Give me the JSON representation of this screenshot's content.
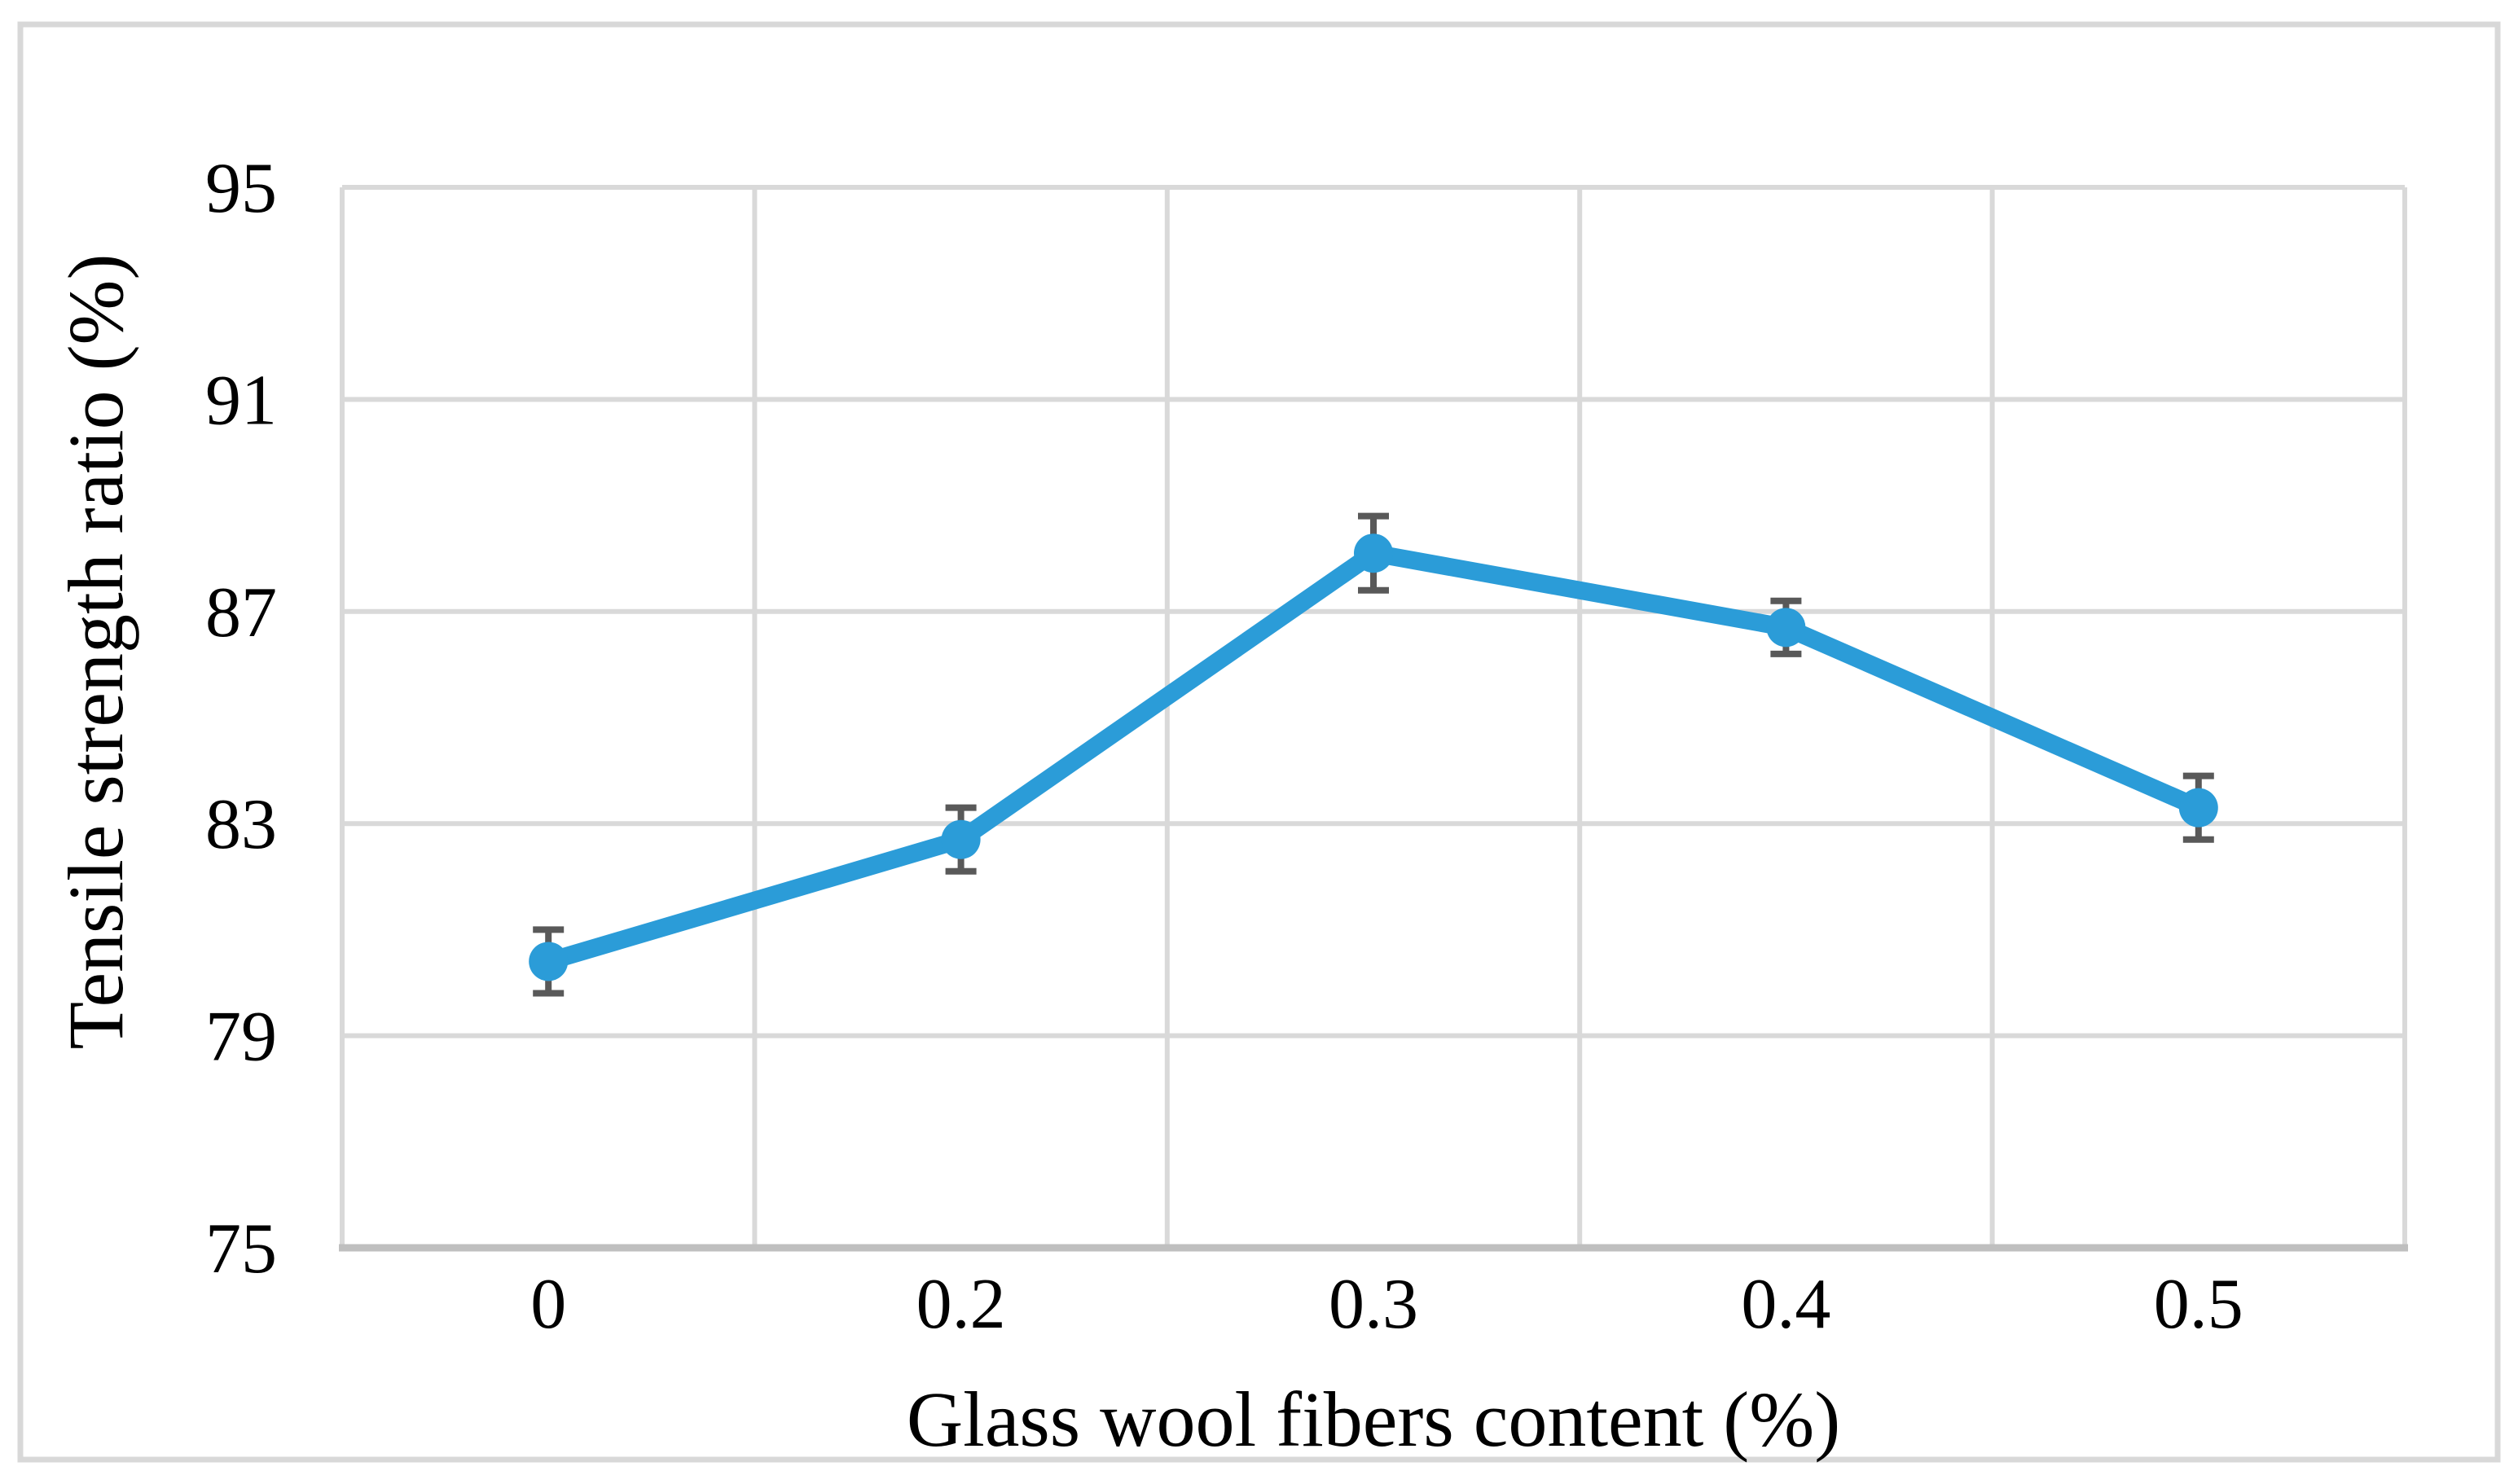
{
  "figure": {
    "background": "#FFFFFF",
    "border_color": "#D8D8D8"
  },
  "chart_data": {
    "type": "line",
    "title": "",
    "xlabel": "Glass wool fibers content (%)",
    "ylabel": "Tensile strength ratio (%)",
    "categories": [
      "0",
      "0.2",
      "0.3",
      "0.4",
      "0.5"
    ],
    "series": [
      {
        "name": "Tensile strength ratio",
        "values": [
          80.4,
          82.7,
          88.1,
          86.7,
          83.3
        ],
        "error_bars": [
          0.6,
          0.6,
          0.7,
          0.5,
          0.6
        ],
        "color": "#2B9CD8",
        "marker": "circle",
        "error_bar_color": "#595959"
      }
    ],
    "ylim": [
      75,
      95
    ],
    "yticks": [
      75,
      79,
      83,
      87,
      91,
      95
    ],
    "ytick_labels": [
      "75",
      "79",
      "83",
      "87",
      "91",
      "95"
    ],
    "grid": true,
    "gridline_color": "#D9D9D9",
    "axis_line_color": "#BFBFBF",
    "legend": "none"
  }
}
